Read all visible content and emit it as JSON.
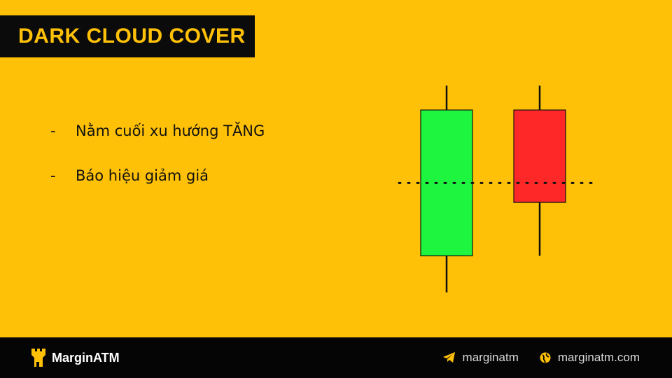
{
  "title": "DARK CLOUD COVER",
  "bullets": [
    {
      "marker": "-",
      "text": "Nằm cuối xu hướng TĂNG"
    },
    {
      "marker": "-",
      "text": "Báo hiệu giảm giá"
    }
  ],
  "chart_data": {
    "type": "candlestick",
    "title": "",
    "candles": [
      {
        "name": "bullish",
        "open": 20,
        "close": 80,
        "high": 90,
        "low": 5,
        "color": "#1EF53E"
      },
      {
        "name": "bearish",
        "open": 80,
        "close": 42,
        "high": 90,
        "low": 20,
        "color": "#FF2828"
      }
    ],
    "reference_level": 50,
    "ylim": [
      0,
      95
    ]
  },
  "footer": {
    "brand": "MarginATM",
    "brand_icon": "tower-logo-icon",
    "links": [
      {
        "icon": "telegram-icon",
        "text": "marginatm"
      },
      {
        "icon": "globe-icon",
        "text": "marginatm.com"
      }
    ]
  },
  "colors": {
    "background": "#FFC107",
    "dark": "#0b0b0b",
    "accent": "#FFC107"
  }
}
